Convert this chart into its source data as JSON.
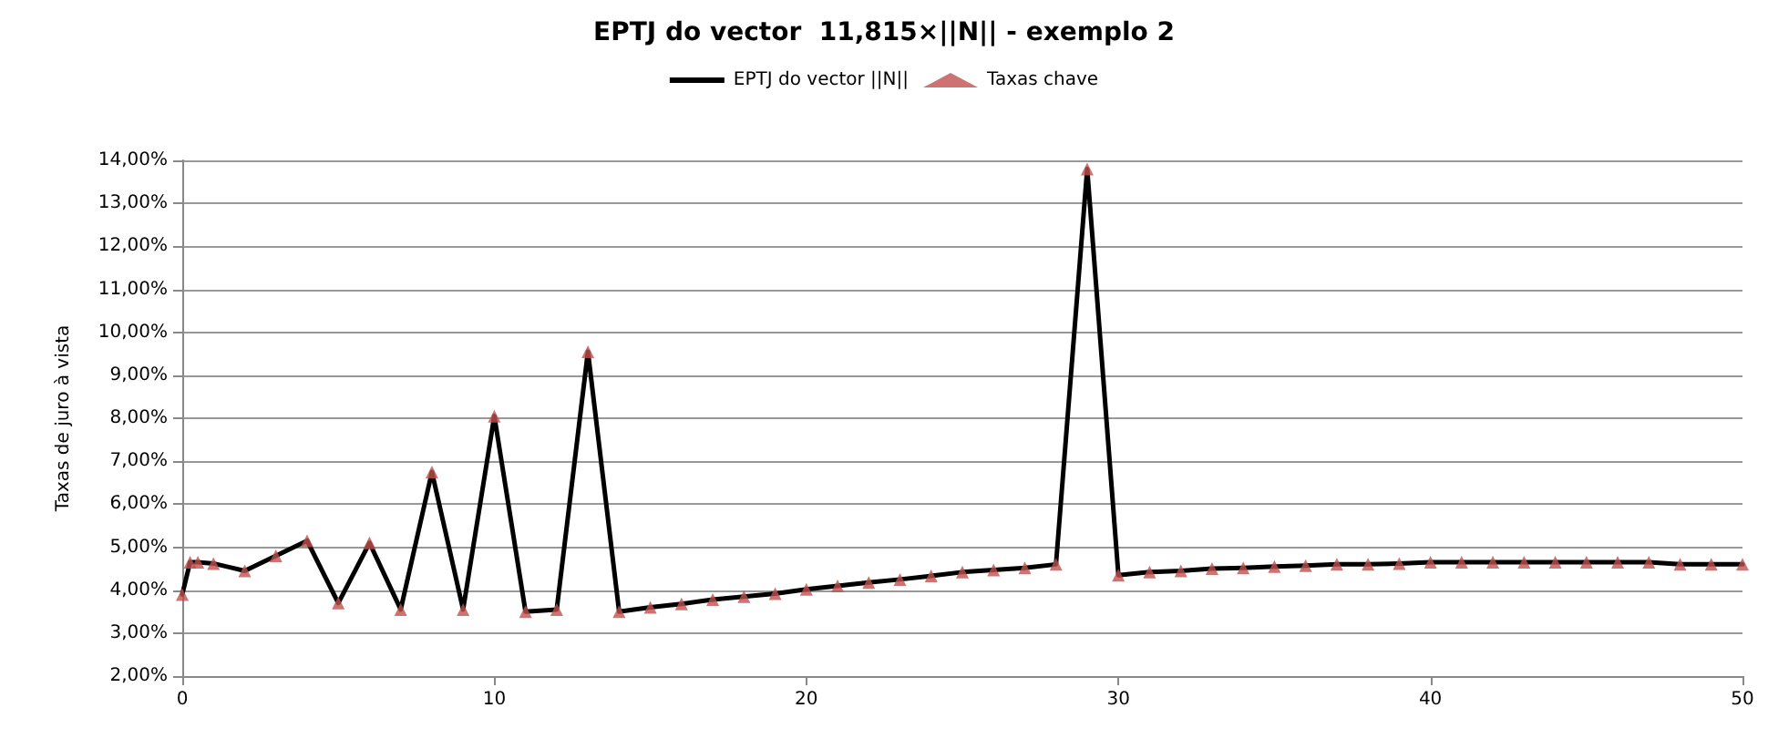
{
  "chart_data": {
    "type": "line",
    "title": "EPTJ do vector  11,815×||N|| - exemplo 2",
    "ylabel": "Taxas de juro à vista",
    "x": [
      0,
      0.25,
      0.5,
      1,
      2,
      3,
      4,
      5,
      6,
      7,
      8,
      9,
      10,
      11,
      12,
      13,
      14,
      15,
      16,
      17,
      18,
      19,
      20,
      21,
      22,
      23,
      24,
      25,
      26,
      27,
      28,
      29,
      30,
      31,
      32,
      33,
      34,
      35,
      36,
      37,
      38,
      39,
      40,
      41,
      42,
      43,
      44,
      45,
      46,
      47,
      48,
      49,
      50
    ],
    "series": [
      {
        "name": "EPTJ do vector ||N||",
        "color": "#000000",
        "marker": "none",
        "line_style": "solid",
        "values": [
          3.9,
          4.65,
          4.65,
          4.62,
          4.45,
          4.8,
          5.15,
          3.7,
          5.1,
          3.55,
          6.75,
          3.55,
          8.05,
          3.5,
          3.55,
          9.55,
          3.5,
          3.6,
          3.68,
          3.78,
          3.85,
          3.92,
          4.02,
          4.1,
          4.18,
          4.25,
          4.33,
          4.42,
          4.47,
          4.52,
          4.6,
          13.8,
          4.35,
          4.42,
          4.45,
          4.5,
          4.52,
          4.55,
          4.57,
          4.6,
          4.6,
          4.62,
          4.65,
          4.65,
          4.65,
          4.65,
          4.65,
          4.65,
          4.65,
          4.65,
          4.6,
          4.6,
          4.6
        ]
      },
      {
        "name": "Taxas chave",
        "type": "scatter",
        "color": "#c0504d",
        "marker": "triangle",
        "values": [
          3.9,
          4.65,
          4.65,
          4.62,
          4.45,
          4.8,
          5.15,
          3.7,
          5.1,
          3.55,
          6.75,
          3.55,
          8.05,
          3.5,
          3.55,
          9.55,
          3.5,
          3.6,
          3.68,
          3.78,
          3.85,
          3.92,
          4.02,
          4.1,
          4.18,
          4.25,
          4.33,
          4.42,
          4.47,
          4.52,
          4.6,
          13.8,
          4.35,
          4.42,
          4.45,
          4.5,
          4.52,
          4.55,
          4.57,
          4.6,
          4.6,
          4.62,
          4.65,
          4.65,
          4.65,
          4.65,
          4.65,
          4.65,
          4.65,
          4.65,
          4.6,
          4.6,
          4.6
        ]
      }
    ],
    "xlim": [
      0,
      50
    ],
    "xticks": [
      0,
      10,
      20,
      30,
      40,
      50
    ],
    "ylim": [
      2,
      14
    ],
    "yticks": [
      {
        "value": 2,
        "label": "2,00%"
      },
      {
        "value": 3,
        "label": "3,00%"
      },
      {
        "value": 4,
        "label": "4,00%"
      },
      {
        "value": 5,
        "label": "5,00%"
      },
      {
        "value": 6,
        "label": "6,00%"
      },
      {
        "value": 7,
        "label": "7,00%"
      },
      {
        "value": 8,
        "label": "8,00%"
      },
      {
        "value": 9,
        "label": "9,00%"
      },
      {
        "value": 10,
        "label": "10,00%"
      },
      {
        "value": 11,
        "label": "11,00%"
      },
      {
        "value": 12,
        "label": "12,00%"
      },
      {
        "value": 13,
        "label": "13,00%"
      },
      {
        "value": 14,
        "label": "14,00%"
      }
    ],
    "grid": "y",
    "legend": "top"
  }
}
